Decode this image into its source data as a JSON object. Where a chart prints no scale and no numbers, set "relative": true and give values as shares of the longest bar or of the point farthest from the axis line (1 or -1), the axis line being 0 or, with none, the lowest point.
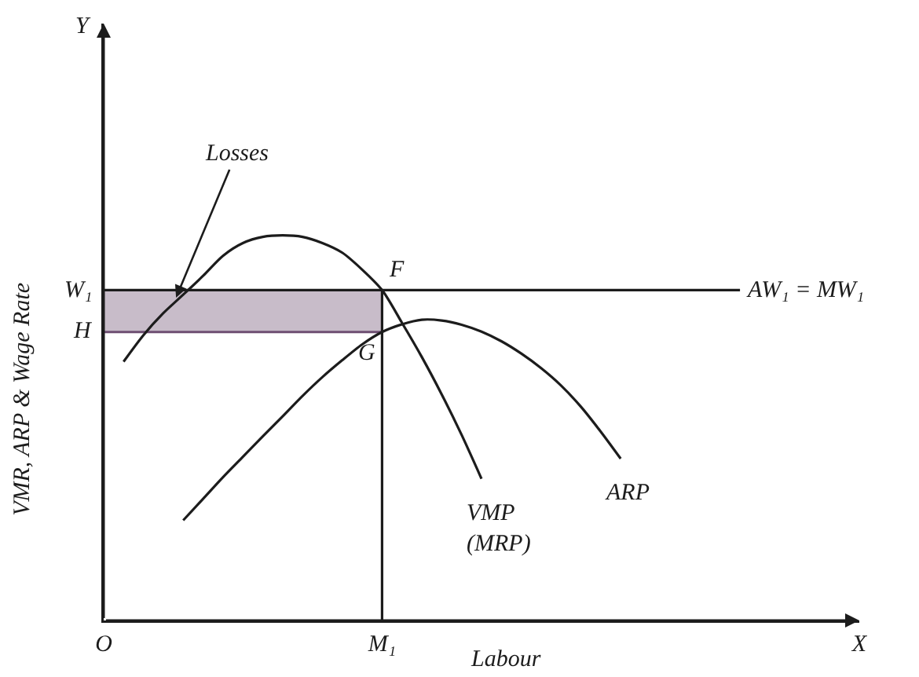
{
  "chart_data": {
    "type": "line",
    "relative": true,
    "xlabel": "Labour",
    "ylabel": "VMR, ARP & Wage Rate",
    "marker": "none",
    "line_style": "solid",
    "categories": [
      "O",
      null,
      null,
      null,
      null,
      null,
      null,
      null,
      null,
      null,
      null,
      null,
      null,
      null,
      "M₁",
      null,
      null,
      null,
      null,
      null,
      null,
      null,
      null,
      null,
      null,
      null,
      null,
      null,
      null,
      null,
      null,
      null,
      null,
      null,
      null,
      null,
      null,
      null,
      "X"
    ],
    "series": [
      {
        "color": "#6e4f72",
        "x": [
          "O",
          "M₁"
        ],
        "values": [
          0.749,
          0.749
        ],
        "lower": [
          0.749,
          0.749
        ],
        "upper": [
          0.858,
          0.858
        ]
      },
      {
        "name": "VMP\n(MRP)",
        "color": "#1c1c1c",
        "values": [
          null,
          0.672,
          0.741,
          0.798,
          0.846,
          0.895,
          0.947,
          0.98,
          0.996,
          1,
          0.996,
          0.98,
          0.955,
          0.911,
          0.858,
          0.773,
          0.684,
          0.587,
          0.482,
          0.368,
          null,
          null,
          null,
          null,
          null,
          null,
          null,
          null,
          null,
          null,
          null,
          null,
          null,
          null,
          null,
          null,
          null,
          null,
          null
        ]
      },
      {
        "name": "ARP",
        "color": "#1c1c1c",
        "values": [
          null,
          null,
          null,
          null,
          0.26,
          0.316,
          0.372,
          0.425,
          0.478,
          0.53,
          0.583,
          0.632,
          0.676,
          0.717,
          0.749,
          0.769,
          0.781,
          0.779,
          0.768,
          0.75,
          0.725,
          0.693,
          0.655,
          0.61,
          0.555,
          0.49,
          0.42,
          null,
          null,
          null,
          null,
          null,
          null,
          null,
          null,
          null,
          null,
          null,
          null
        ]
      },
      {
        "name": "AW₁ = MW₁",
        "color": "#1c1c1c",
        "values": [
          0.858,
          0.858,
          0.858,
          0.858,
          0.858,
          0.858,
          0.858,
          0.858,
          0.858,
          0.858,
          0.858,
          0.858,
          0.858,
          0.858,
          0.858,
          0.858,
          0.858,
          0.858,
          0.858,
          0.858,
          0.858,
          0.858,
          0.858,
          0.858,
          0.858,
          0.858,
          0.858,
          0.858,
          0.858,
          0.858,
          0.858,
          0.858,
          0.858,
          null,
          null,
          null,
          null,
          null,
          null
        ]
      },
      {
        "color": "#1c1c1c",
        "x": [
          "M₁",
          "M₁"
        ],
        "values": [
          0,
          0.858
        ]
      }
    ],
    "annotations": [
      "Y",
      {
        "text": "W₁",
        "x": "O",
        "y": 0.858
      },
      {
        "text": "H",
        "x": "O",
        "y": 0.749
      },
      {
        "text": "F",
        "x": "M₁",
        "y": 0.858
      },
      {
        "text": "G",
        "x": "M₁",
        "y": 0.749
      },
      "Losses"
    ]
  }
}
